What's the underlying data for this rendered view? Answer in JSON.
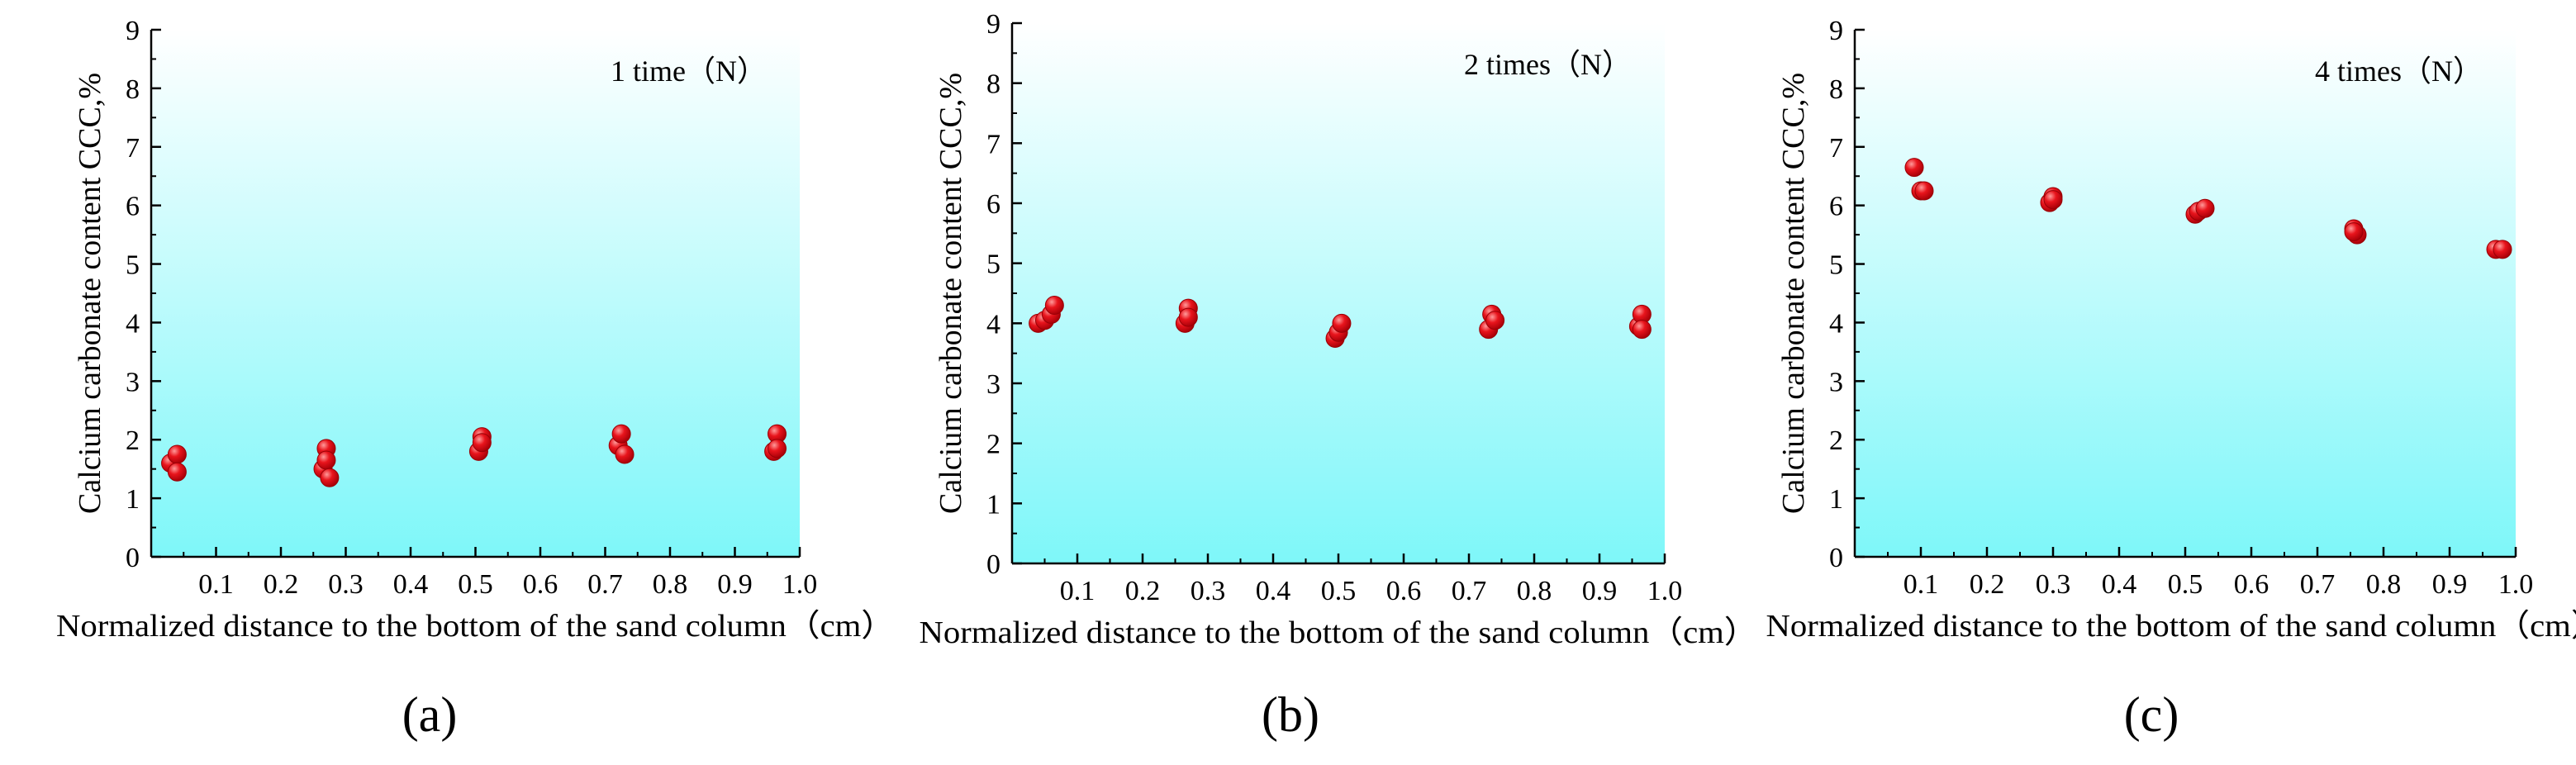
{
  "colors": {
    "marker": "#e8141c",
    "marker_highlight": "#ff9a9a",
    "background_top": "#ffffff",
    "background_bottom": "#7ef7f9",
    "axis": "#000000"
  },
  "chart_data": [
    {
      "type": "scatter",
      "panel_label": "(a)",
      "title": "1 time（N）",
      "xlabel": "Normalized distance to the bottom of the sand column（cm）",
      "ylabel": "Calcium carbonate content CCC,%",
      "xlim": [
        0,
        1.0
      ],
      "ylim": [
        0,
        9
      ],
      "xticks": [
        "0.1",
        "0.2",
        "0.3",
        "0.4",
        "0.5",
        "0.6",
        "0.7",
        "0.8",
        "0.9",
        "1.0"
      ],
      "yticks": [
        "0",
        "1",
        "2",
        "3",
        "4",
        "5",
        "6",
        "7",
        "8",
        "9"
      ],
      "legend": "top-right",
      "grid": false,
      "x": [
        0.03,
        0.04,
        0.04,
        0.265,
        0.27,
        0.27,
        0.275,
        0.505,
        0.51,
        0.51,
        0.72,
        0.725,
        0.73,
        0.96,
        0.965,
        0.965
      ],
      "y": [
        1.6,
        1.75,
        1.45,
        1.5,
        1.85,
        1.65,
        1.35,
        1.8,
        2.05,
        1.95,
        1.9,
        2.1,
        1.75,
        1.8,
        2.1,
        1.85
      ]
    },
    {
      "type": "scatter",
      "panel_label": "(b)",
      "title": "2 times（N）",
      "xlabel": "Normalized distance to the bottom of the sand column（cm）",
      "ylabel": "Calcium carbonate content CCC,%",
      "xlim": [
        0,
        1.0
      ],
      "ylim": [
        0,
        9
      ],
      "xticks": [
        "0.1",
        "0.2",
        "0.3",
        "0.4",
        "0.5",
        "0.6",
        "0.7",
        "0.8",
        "0.9",
        "1.0"
      ],
      "yticks": [
        "0",
        "1",
        "2",
        "3",
        "4",
        "5",
        "6",
        "7",
        "8",
        "9"
      ],
      "legend": "top-right",
      "grid": false,
      "x": [
        0.04,
        0.05,
        0.06,
        0.065,
        0.265,
        0.27,
        0.27,
        0.495,
        0.5,
        0.505,
        0.73,
        0.735,
        0.74,
        0.96,
        0.965,
        0.965
      ],
      "y": [
        4.0,
        4.05,
        4.15,
        4.3,
        4.0,
        4.25,
        4.1,
        3.75,
        3.85,
        4.0,
        3.9,
        4.15,
        4.05,
        3.95,
        4.15,
        3.9
      ]
    },
    {
      "type": "scatter",
      "panel_label": "(c)",
      "title": "4 times（N）",
      "xlabel": "Normalized distance to the bottom of the sand column（cm）",
      "ylabel": "Calcium carbonate content CCC,%",
      "xlim": [
        0,
        1.0
      ],
      "ylim": [
        0,
        9
      ],
      "xticks": [
        "0.1",
        "0.2",
        "0.3",
        "0.4",
        "0.5",
        "0.6",
        "0.7",
        "0.8",
        "0.9",
        "1.0"
      ],
      "yticks": [
        "0",
        "1",
        "2",
        "3",
        "4",
        "5",
        "6",
        "7",
        "8",
        "9"
      ],
      "legend": "top-right",
      "grid": false,
      "x": [
        0.09,
        0.1,
        0.105,
        0.295,
        0.3,
        0.3,
        0.515,
        0.52,
        0.53,
        0.755,
        0.76,
        0.755,
        0.97,
        0.98
      ],
      "y": [
        6.65,
        6.25,
        6.25,
        6.05,
        6.15,
        6.1,
        5.85,
        5.9,
        5.95,
        5.6,
        5.5,
        5.55,
        5.25,
        5.25
      ]
    }
  ]
}
